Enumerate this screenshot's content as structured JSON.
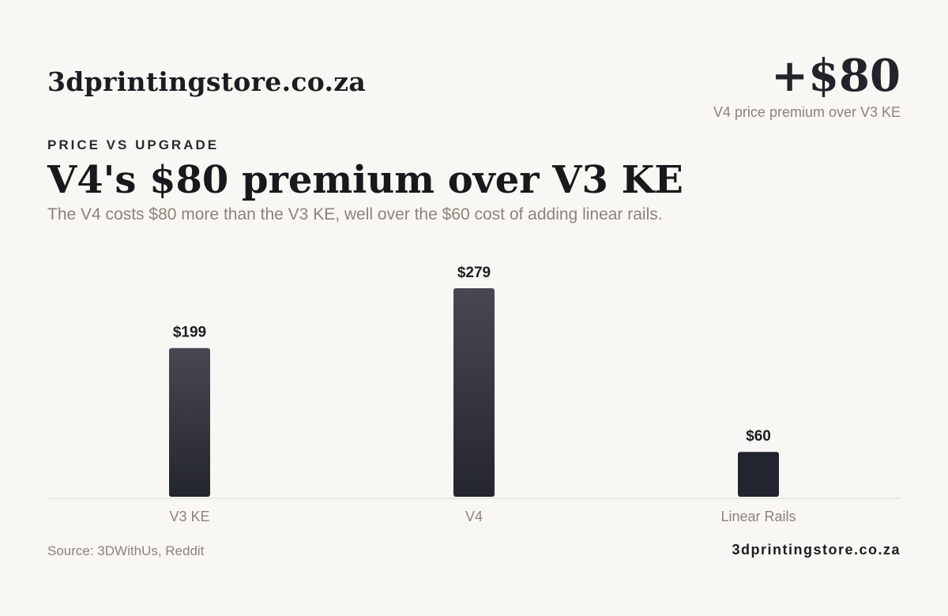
{
  "header": {
    "brand": "3dprintingstore.co.za",
    "kpi_value": "+$80",
    "kpi_caption": "V4 price premium over V3 KE"
  },
  "eyebrow": "PRICE VS UPGRADE",
  "headline": "V4's $80 premium over V3 KE",
  "subtitle": "The V4 costs $80 more than the V3 KE, well over the $60 cost of adding linear rails.",
  "chart_data": {
    "type": "bar",
    "categories": [
      "V3 KE",
      "V4",
      "Linear Rails"
    ],
    "values": [
      199,
      279,
      60
    ],
    "value_labels": [
      "$199",
      "$279",
      "$60"
    ],
    "title": "",
    "xlabel": "",
    "ylabel": "",
    "ylim": [
      0,
      300
    ],
    "grid": false,
    "legend": "none",
    "colors": {
      "bar_top": "#474852",
      "bar_bottom": "#24262e",
      "highlight_bar": "#22252f",
      "axis_line": "#dcd8d1",
      "tick_label": "#8a837b",
      "value_label": "#1c1c22"
    }
  },
  "footer": {
    "source": "Source: 3DWithUs, Reddit",
    "brand": "3dprintingstore.co.za"
  }
}
